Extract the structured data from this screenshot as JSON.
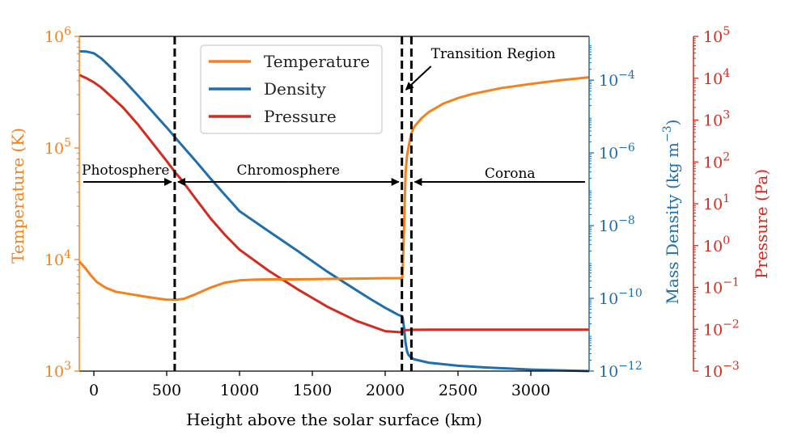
{
  "chart_data": {
    "type": "line",
    "xlabel": "Height above the solar surface (km)",
    "xlim": [
      -100,
      3400
    ],
    "x_ticks": [
      "0",
      "500",
      "1000",
      "1500",
      "2000",
      "2500",
      "3000"
    ],
    "axes": {
      "temperature": {
        "label": "Temperature (K)",
        "scale": "log",
        "range": [
          1000,
          1000000
        ],
        "ticks": [
          {
            "base": "10",
            "exp": "3"
          },
          {
            "base": "10",
            "exp": "4"
          },
          {
            "base": "10",
            "exp": "5"
          },
          {
            "base": "10",
            "exp": "6"
          }
        ],
        "color": "#f5811c"
      },
      "density": {
        "label_main": "Mass Density (kg m",
        "label_exp": "−3",
        "label_close": ")",
        "scale": "log",
        "range": [
          1e-12,
          0.0016
        ],
        "ticks": [
          {
            "base": "10",
            "exp": "−12"
          },
          {
            "base": "10",
            "exp": "−10"
          },
          {
            "base": "10",
            "exp": "−8"
          },
          {
            "base": "10",
            "exp": "−6"
          },
          {
            "base": "10",
            "exp": "−4"
          }
        ],
        "color": "#1f6faf"
      },
      "pressure": {
        "label": "Pressure (Pa)",
        "scale": "log",
        "range": [
          0.001,
          100000
        ],
        "ticks": [
          {
            "base": "10",
            "exp": "−3"
          },
          {
            "base": "10",
            "exp": "−2"
          },
          {
            "base": "10",
            "exp": "−1"
          },
          {
            "base": "10",
            "exp": "0"
          },
          {
            "base": "10",
            "exp": "1"
          },
          {
            "base": "10",
            "exp": "2"
          },
          {
            "base": "10",
            "exp": "3"
          },
          {
            "base": "10",
            "exp": "4"
          },
          {
            "base": "10",
            "exp": "5"
          }
        ],
        "color": "#d42b20"
      }
    },
    "series": [
      {
        "name": "Temperature",
        "axis": "temperature",
        "color": "#f5811c",
        "x": [
          -100,
          -60,
          -20,
          20,
          80,
          150,
          250,
          350,
          450,
          500,
          560,
          620,
          700,
          800,
          900,
          1000,
          1100,
          1200,
          1400,
          1600,
          1800,
          2000,
          2100,
          2118,
          2120,
          2125,
          2130,
          2135,
          2140,
          2150,
          2165,
          2180,
          2200,
          2250,
          2300,
          2400,
          2500,
          2600,
          2800,
          3000,
          3200,
          3400
        ],
        "values": [
          9600,
          8400,
          7200,
          6300,
          5600,
          5150,
          4900,
          4650,
          4450,
          4370,
          4350,
          4450,
          4900,
          5600,
          6200,
          6500,
          6600,
          6650,
          6650,
          6700,
          6750,
          6800,
          6800,
          6850,
          8000,
          12000,
          20000,
          35000,
          60000,
          85000,
          110000,
          135000,
          155000,
          185000,
          210000,
          250000,
          280000,
          305000,
          345000,
          375000,
          405000,
          430000
        ]
      },
      {
        "name": "Density",
        "axis": "density",
        "color": "#1f6faf",
        "x": [
          -100,
          -50,
          0,
          50,
          100,
          200,
          300,
          400,
          500,
          600,
          700,
          800,
          900,
          1000,
          1200,
          1400,
          1600,
          1800,
          1900,
          2000,
          2050,
          2090,
          2110,
          2120,
          2130,
          2140,
          2150,
          2160,
          2175,
          2200,
          2300,
          2500,
          2700,
          3000,
          3400
        ],
        "values": [
          0.00062,
          0.00061,
          0.00055,
          0.0004,
          0.00026,
          0.000105,
          3.9e-05,
          1.4e-05,
          5e-06,
          1.7e-06,
          5.9e-07,
          2e-07,
          7e-08,
          2.5e-08,
          7e-09,
          2e-09,
          5.5e-10,
          1.7e-10,
          9.5e-11,
          5.5e-11,
          4.3e-11,
          3.5e-11,
          3.3e-11,
          3e-11,
          1.5e-11,
          6e-12,
          3.5e-12,
          2.8e-12,
          2.4e-12,
          2.1e-12,
          1.7e-12,
          1.4e-12,
          1.25e-12,
          1.1e-12,
          1e-12
        ]
      },
      {
        "name": "Pressure",
        "axis": "pressure",
        "color": "#d42b20",
        "x": [
          -100,
          -50,
          0,
          50,
          100,
          200,
          300,
          400,
          500,
          560,
          600,
          700,
          800,
          900,
          1000,
          1200,
          1400,
          1600,
          1800,
          2000,
          2100,
          2120,
          2130,
          2140,
          2160,
          2200,
          2300,
          2500,
          3000,
          3400
        ],
        "values": [
          12000,
          10000,
          8000,
          6000,
          4200,
          2000,
          800,
          290,
          105,
          55,
          38,
          13,
          4.5,
          1.8,
          0.8,
          0.25,
          0.09,
          0.035,
          0.016,
          0.009,
          0.0085,
          0.0085,
          0.0092,
          0.0095,
          0.0096,
          0.0097,
          0.0098,
          0.0098,
          0.0098,
          0.0098
        ]
      }
    ],
    "vlines": [
      555,
      2115,
      2180
    ],
    "legend": {
      "placement": "upper-center",
      "entries": [
        {
          "label": "Temperature",
          "color": "#f5811c"
        },
        {
          "label": "Density",
          "color": "#1f6faf"
        },
        {
          "label": "Pressure",
          "color": "#d42b20"
        }
      ]
    },
    "regions": [
      {
        "label": "Photosphere",
        "from": -100,
        "to": 555
      },
      {
        "label": "Chromosphere",
        "from": 555,
        "to": 2115
      },
      {
        "label": "Corona",
        "from": 2180,
        "to": 3400
      }
    ],
    "annotations": [
      {
        "text": "Transition Region",
        "points_to_x": 2148,
        "points_to_T": 180000
      }
    ],
    "grid": false
  }
}
